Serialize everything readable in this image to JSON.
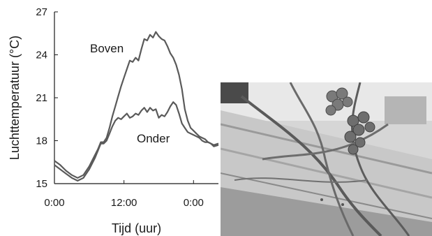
{
  "chart_data": {
    "type": "line",
    "title": "",
    "xlabel": "Tijd (uur)",
    "ylabel": "Luchttemperatuur (°C)",
    "xlim": [
      0,
      28.3
    ],
    "ylim": [
      15,
      27
    ],
    "x_ticks": [
      {
        "value": 0,
        "label": "0:00"
      },
      {
        "value": 12,
        "label": "12:00"
      },
      {
        "value": 24,
        "label": "0:00"
      }
    ],
    "y_ticks": [
      15,
      18,
      21,
      24,
      27
    ],
    "grid": false,
    "series": [
      {
        "name": "Boven",
        "color": "#5a5a5a",
        "x": [
          0,
          1,
          2,
          3,
          4,
          5,
          6,
          7,
          7.5,
          8,
          8.5,
          9,
          9.5,
          10,
          10.5,
          11,
          11.5,
          12,
          12.5,
          13,
          13.5,
          14,
          14.5,
          15,
          15.5,
          16,
          16.5,
          17,
          17.5,
          18,
          18.5,
          19,
          19.5,
          20,
          20.5,
          21,
          21.5,
          22,
          22.5,
          23,
          23.5,
          24,
          24.5,
          25,
          25.5,
          26,
          26.5,
          27,
          27.5,
          28.3
        ],
        "y": [
          16.6,
          16.3,
          15.9,
          15.6,
          15.4,
          15.6,
          16.2,
          17.0,
          17.4,
          17.9,
          17.9,
          18.2,
          18.9,
          19.7,
          20.4,
          21.1,
          21.8,
          22.4,
          23.0,
          23.6,
          23.5,
          23.8,
          23.6,
          24.4,
          25.1,
          25.0,
          25.4,
          25.2,
          25.6,
          25.3,
          25.1,
          25.0,
          24.6,
          24.1,
          23.8,
          23.3,
          22.6,
          21.6,
          20.2,
          19.4,
          18.9,
          18.7,
          18.5,
          18.3,
          18.2,
          18.1,
          17.9,
          17.8,
          17.7,
          17.8
        ]
      },
      {
        "name": "Onder",
        "color": "#5a5a5a",
        "x": [
          0,
          1,
          2,
          3,
          4,
          5,
          6,
          7,
          7.5,
          8,
          8.5,
          9,
          9.5,
          10,
          10.5,
          11,
          11.5,
          12,
          12.5,
          13,
          13.5,
          14,
          14.5,
          15,
          15.5,
          16,
          16.5,
          17,
          17.5,
          18,
          18.5,
          19,
          19.5,
          20,
          20.5,
          21,
          21.5,
          22,
          22.5,
          23,
          23.5,
          24,
          24.5,
          25,
          25.5,
          26,
          26.5,
          27,
          27.5,
          28.3
        ],
        "y": [
          16.3,
          16.0,
          15.7,
          15.4,
          15.2,
          15.4,
          16.0,
          16.8,
          17.3,
          17.8,
          17.8,
          18.0,
          18.5,
          19.0,
          19.4,
          19.6,
          19.5,
          19.7,
          19.9,
          19.6,
          19.7,
          19.9,
          19.8,
          20.1,
          20.3,
          20.0,
          20.3,
          20.1,
          20.2,
          19.6,
          19.8,
          19.7,
          20.0,
          20.4,
          20.7,
          20.5,
          19.9,
          19.2,
          18.9,
          18.6,
          18.5,
          18.4,
          18.3,
          18.2,
          18.0,
          17.9,
          17.9,
          17.8,
          17.6,
          17.7
        ]
      }
    ]
  }
}
